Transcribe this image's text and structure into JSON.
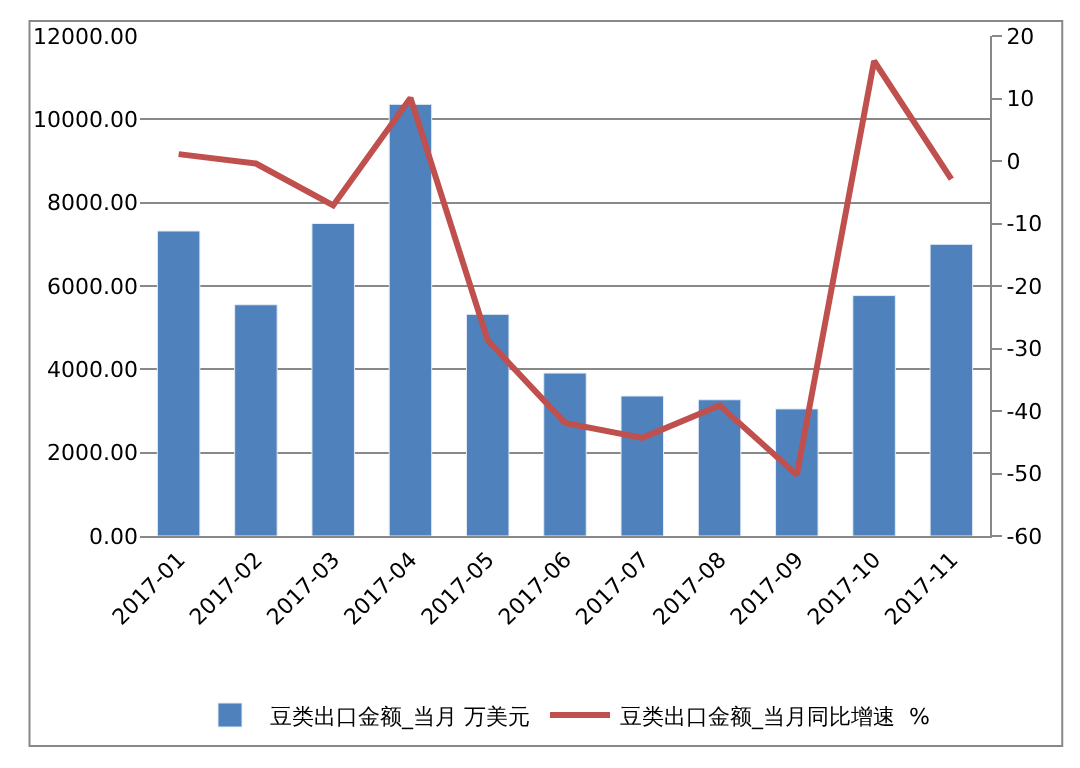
{
  "chart_data": {
    "type": "bar",
    "categories": [
      "2017-01",
      "2017-02",
      "2017-03",
      "2017-04",
      "2017-05",
      "2017-06",
      "2017-07",
      "2017-08",
      "2017-09",
      "2017-10",
      "2017-11"
    ],
    "series": [
      {
        "name": "豆类出口金额_当月 万美元",
        "color": "#4f81bd",
        "values": [
          7320,
          5550,
          7500,
          10360,
          5320,
          3910,
          3360,
          3270,
          3050,
          5770,
          7000
        ]
      },
      {
        "name": "豆类出口金额_当月同比增速  %",
        "type": "line",
        "axis": "y2",
        "color": "#c0504d",
        "values": [
          1.1,
          -0.4,
          -7.1,
          10.1,
          -28.7,
          -41.9,
          -44.3,
          -39.1,
          -50.2,
          16.0,
          -2.9
        ]
      }
    ],
    "ylim": [
      0,
      12000
    ],
    "yticks": [
      {
        "value": 0,
        "label": "0.00"
      },
      {
        "value": 2000,
        "label": "2000.00"
      },
      {
        "value": 4000,
        "label": "4000.00"
      },
      {
        "value": 6000,
        "label": "6000.00"
      },
      {
        "value": 8000,
        "label": "8000.00"
      },
      {
        "value": 10000,
        "label": "10000.00"
      },
      {
        "value": 12000,
        "label": "12000.00"
      }
    ],
    "y2lim": [
      -60,
      20
    ],
    "y2ticks": [
      -60,
      -50,
      -40,
      -30,
      -20,
      -10,
      0,
      10,
      20
    ],
    "grid": "y",
    "legend": "bottom",
    "marker": "none",
    "line_style": "solid"
  }
}
